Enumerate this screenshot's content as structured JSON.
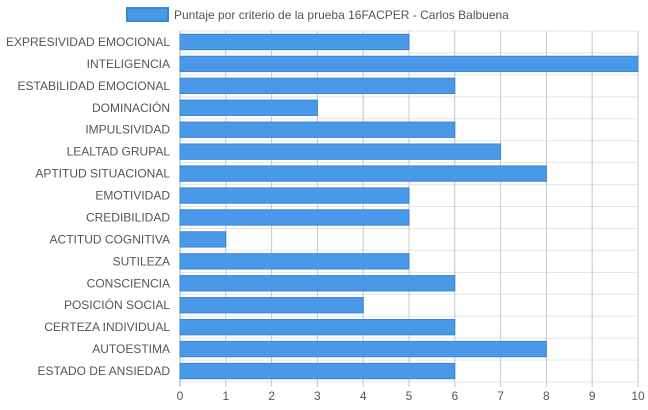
{
  "chart_data": {
    "type": "bar",
    "orientation": "horizontal",
    "categories": [
      "EXPRESIVIDAD EMOCIONAL",
      "INTELIGENCIA",
      "ESTABILIDAD EMOCIONAL",
      "DOMINACIÓN",
      "IMPULSIVIDAD",
      "LEALTAD GRUPAL",
      "APTITUD SITUACIONAL",
      "EMOTIVIDAD",
      "CREDIBILIDAD",
      "ACTITUD COGNITIVA",
      "SUTILEZA",
      "CONSCIENCIA",
      "POSICIÓN SOCIAL",
      "CERTEZA INDIVIDUAL",
      "AUTOESTIMA",
      "ESTADO DE ANSIEDAD"
    ],
    "series": [
      {
        "name": "Puntaje por criterio de la prueba 16FACPER - Carlos Balbuena",
        "values": [
          5,
          10,
          6,
          3,
          6,
          7,
          8,
          5,
          5,
          1,
          5,
          6,
          4,
          6,
          8,
          6
        ],
        "color": "#4a98e8",
        "border_color": "#3a86d8"
      }
    ],
    "xlim": [
      0,
      10
    ],
    "x_ticks": [
      "0",
      "1",
      "2",
      "3",
      "4",
      "5",
      "6",
      "7",
      "8",
      "9",
      "10"
    ],
    "legend_position": "top",
    "grid": true
  }
}
